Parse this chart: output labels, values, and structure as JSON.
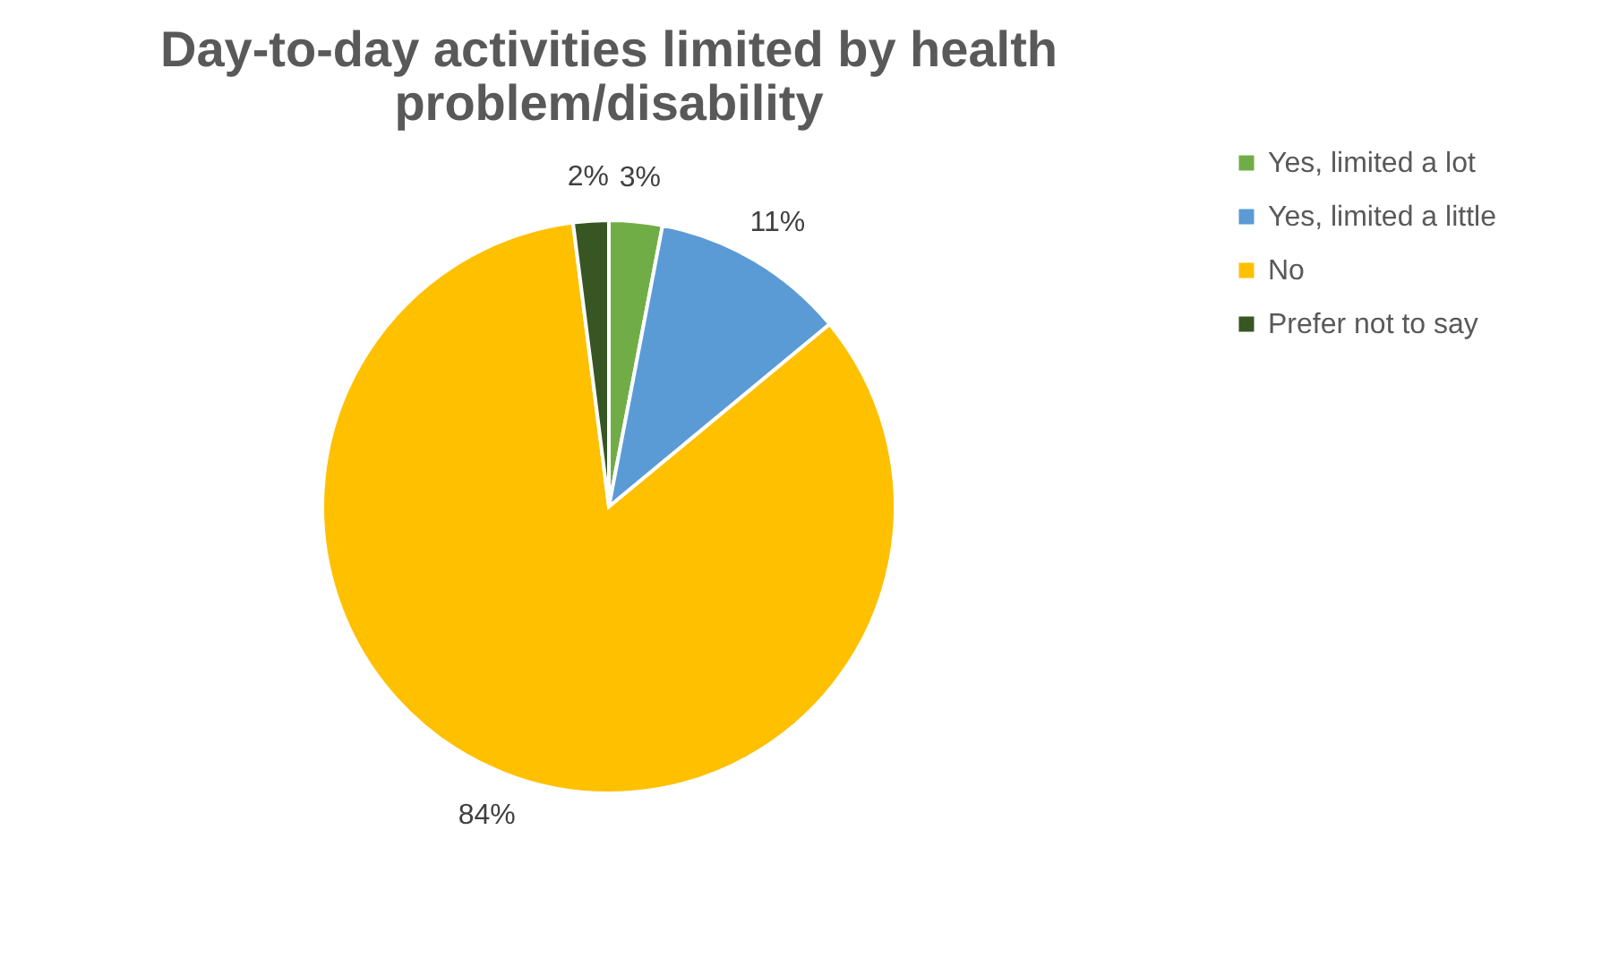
{
  "chart_data": {
    "type": "pie",
    "title": "Day-to-day activities limited by health problem/disability",
    "categories": [
      "Yes, limited a lot",
      "Yes, limited a little",
      "No",
      "Prefer not to say"
    ],
    "values": [
      3,
      11,
      84,
      2
    ],
    "colors": [
      "#70ad47",
      "#5b9bd5",
      "#ffc000",
      "#375623"
    ],
    "value_labels": [
      "3%",
      "11%",
      "84%",
      "2%"
    ],
    "legend": "right"
  }
}
